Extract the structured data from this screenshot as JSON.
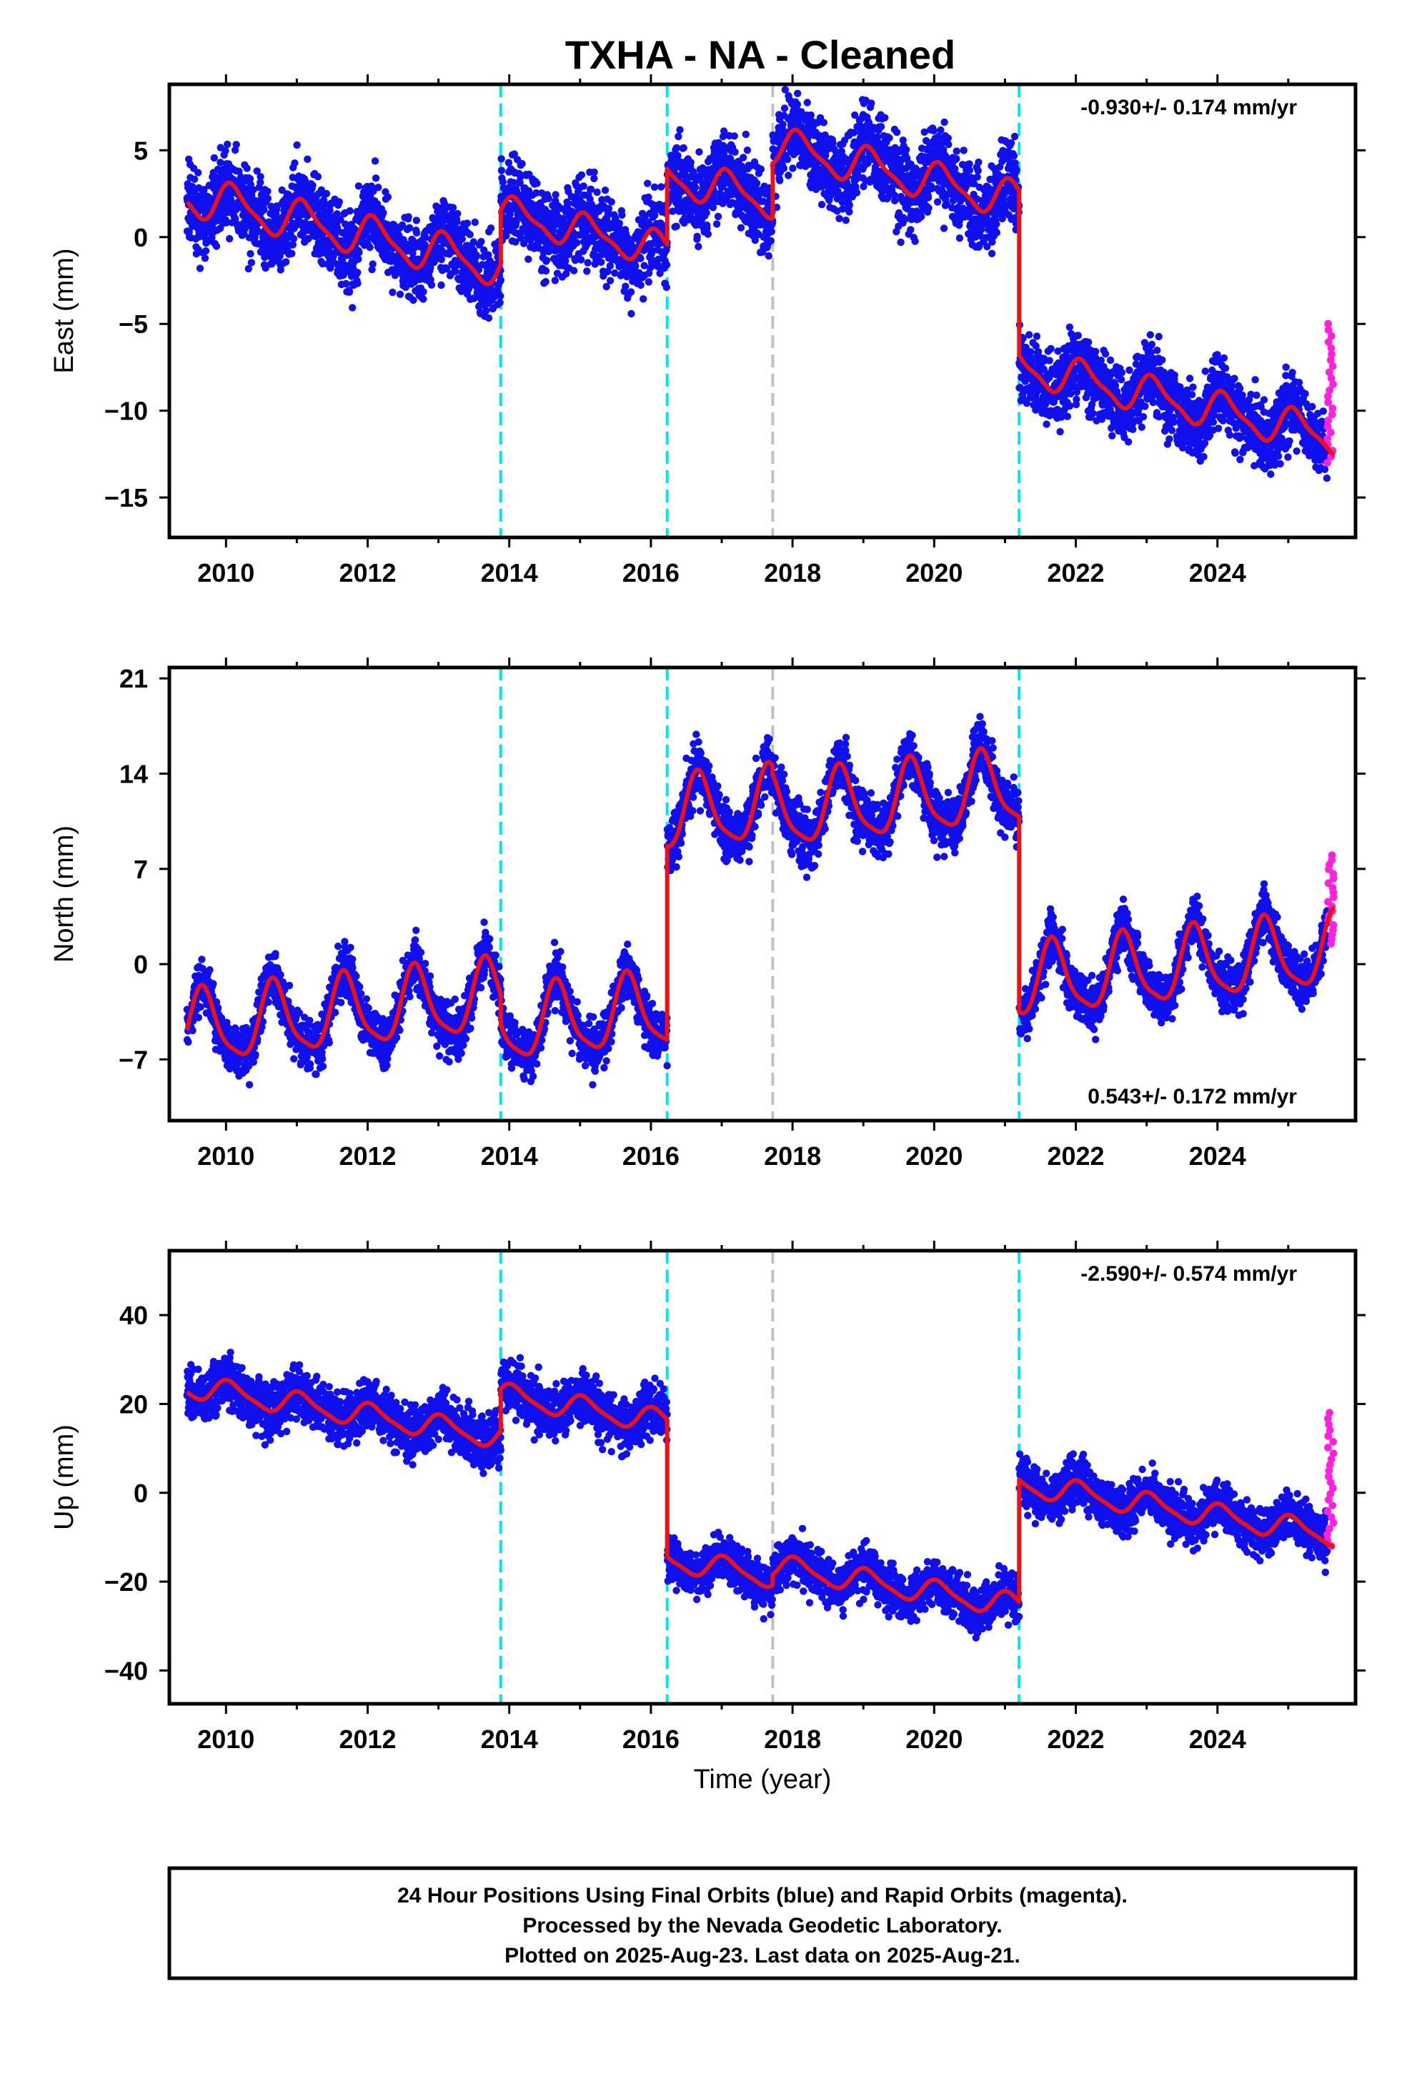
{
  "title": "TXHA  - NA - Cleaned",
  "footer": {
    "lines": [
      "24 Hour Positions Using Final Orbits (blue) and Rapid Orbits (magenta).",
      "Processed by the Nevada Geodetic Laboratory.",
      "Plotted on 2025-Aug-23. Last data on 2025-Aug-21."
    ]
  },
  "colors": {
    "final_points": "#1010ee",
    "rapid_points": "#ff22dd",
    "model_line": "#ee1111",
    "step_cyan": "#00e5ee",
    "step_gray": "#c0c0c0"
  },
  "chart_data": [
    {
      "type": "scatter",
      "component": "East",
      "ylabel": "East (mm)",
      "xlabel": "",
      "xlim": [
        2009.2,
        2025.95
      ],
      "ylim": [
        -17.3,
        8.8
      ],
      "xticks": [
        2010,
        2012,
        2014,
        2016,
        2018,
        2020,
        2022,
        2024
      ],
      "yticks": [
        -15,
        -10,
        -5,
        0,
        5
      ],
      "grid": false,
      "rate_label": "-0.930+/- 0.174 mm/yr",
      "rate_position": "top-right",
      "cyan_steps": [
        2013.88,
        2016.23,
        2021.2
      ],
      "gray_steps": [
        2017.72
      ],
      "model_segments": [
        {
          "start": 2009.45,
          "end": 2013.88,
          "offset": 2.4,
          "amp": 1.1,
          "amp2": 0.3,
          "phase": 0.9,
          "scatter": 1.8
        },
        {
          "start": 2013.88,
          "end": 2016.23,
          "offset": 1.4,
          "amp": 0.9,
          "amp2": 0.3,
          "phase": 0.9,
          "scatter": 1.8
        },
        {
          "start": 2016.23,
          "end": 2017.72,
          "offset": 3.5,
          "amp": 1.0,
          "amp2": 0.3,
          "phase": 0.9,
          "scatter": 1.8
        },
        {
          "start": 2017.72,
          "end": 2021.2,
          "offset": 5.3,
          "amp": 1.0,
          "amp2": 0.3,
          "phase": 0.9,
          "scatter": 1.8
        },
        {
          "start": 2021.2,
          "end": 2025.65,
          "offset": -7.4,
          "amp": 1.0,
          "amp2": 0.3,
          "phase": 0.9,
          "scatter": 1.6
        }
      ],
      "velocity": -0.93,
      "rapid": {
        "x_start": 2025.55,
        "x_end": 2025.64,
        "y_min": -13.0,
        "y_max": -5.0,
        "count": 24
      }
    },
    {
      "type": "scatter",
      "component": "North",
      "ylabel": "North (mm)",
      "xlabel": "",
      "xlim": [
        2009.2,
        2025.95
      ],
      "ylim": [
        -11.5,
        21.8
      ],
      "xticks": [
        2010,
        2012,
        2014,
        2016,
        2018,
        2020,
        2022,
        2024
      ],
      "yticks": [
        -7,
        0,
        7,
        14,
        21
      ],
      "grid": false,
      "rate_label": "0.543+/- 0.172 mm/yr",
      "rate_position": "bottom-right",
      "cyan_steps": [
        2013.88,
        2016.23,
        2021.2
      ],
      "gray_steps": [
        2017.72
      ],
      "model_segments": [
        {
          "start": 2009.45,
          "end": 2013.88,
          "offset": -4.8,
          "amp": 2.6,
          "amp2": 0.6,
          "phase": 3.6,
          "scatter": 1.4
        },
        {
          "start": 2013.88,
          "end": 2016.23,
          "offset": -4.6,
          "amp": 2.6,
          "amp2": 0.6,
          "phase": 3.6,
          "scatter": 1.4
        },
        {
          "start": 2016.23,
          "end": 2017.72,
          "offset": 10.9,
          "amp": 2.6,
          "amp2": 0.6,
          "phase": 3.6,
          "scatter": 1.6
        },
        {
          "start": 2017.72,
          "end": 2021.2,
          "offset": 11.1,
          "amp": 2.6,
          "amp2": 0.6,
          "phase": 3.6,
          "scatter": 1.6
        },
        {
          "start": 2021.2,
          "end": 2025.65,
          "offset": -1.4,
          "amp": 2.6,
          "amp2": 0.6,
          "phase": 3.6,
          "scatter": 1.4
        }
      ],
      "velocity": 0.543,
      "rapid": {
        "x_start": 2025.55,
        "x_end": 2025.64,
        "y_min": 1.5,
        "y_max": 8.0,
        "count": 20
      }
    },
    {
      "type": "scatter",
      "component": "Up",
      "ylabel": "Up (mm)",
      "xlabel": "Time (year)",
      "xlim": [
        2009.2,
        2025.95
      ],
      "ylim": [
        -47.5,
        54.5
      ],
      "xticks": [
        2010,
        2012,
        2014,
        2016,
        2018,
        2020,
        2022,
        2024
      ],
      "yticks": [
        -40,
        -20,
        0,
        20,
        40
      ],
      "grid": false,
      "rate_label": "-2.590+/- 0.574 mm/yr",
      "rate_position": "top-right",
      "cyan_steps": [
        2013.88,
        2016.23,
        2021.2
      ],
      "gray_steps": [
        2017.72
      ],
      "model_segments": [
        {
          "start": 2009.45,
          "end": 2013.88,
          "offset": 24.0,
          "amp": 2.5,
          "amp2": 0.6,
          "phase": 1.2,
          "scatter": 4.5
        },
        {
          "start": 2013.88,
          "end": 2016.23,
          "offset": 22.0,
          "amp": 2.5,
          "amp2": 0.6,
          "phase": 1.2,
          "scatter": 4.5
        },
        {
          "start": 2016.23,
          "end": 2017.72,
          "offset": -15.0,
          "amp": 2.5,
          "amp2": 0.6,
          "phase": 1.2,
          "scatter": 4.0
        },
        {
          "start": 2017.72,
          "end": 2021.2,
          "offset": -16.5,
          "amp": 2.5,
          "amp2": 0.6,
          "phase": 1.2,
          "scatter": 4.0
        },
        {
          "start": 2021.2,
          "end": 2025.65,
          "offset": 2.0,
          "amp": 2.5,
          "amp2": 0.6,
          "phase": 1.2,
          "scatter": 4.0
        }
      ],
      "velocity": -2.59,
      "rapid": {
        "x_start": 2025.55,
        "x_end": 2025.64,
        "y_min": -12.0,
        "y_max": 18.0,
        "count": 24
      }
    }
  ]
}
